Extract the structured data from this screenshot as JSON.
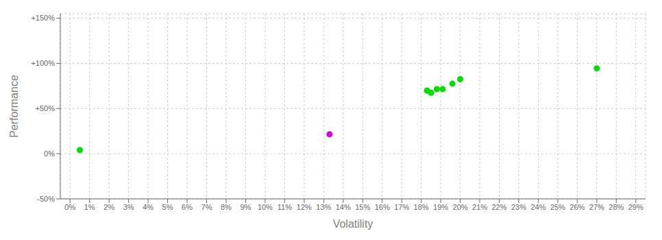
{
  "chart_data": {
    "type": "scatter",
    "xlabel": "Volatility",
    "ylabel": "Performance",
    "xlim": [
      -0.005,
      0.295
    ],
    "ylim": [
      -0.5,
      1.55
    ],
    "xticks": [
      {
        "value": 0.0,
        "label": "0%"
      },
      {
        "value": 0.01,
        "label": "1%"
      },
      {
        "value": 0.02,
        "label": "2%"
      },
      {
        "value": 0.03,
        "label": "3%"
      },
      {
        "value": 0.04,
        "label": "4%"
      },
      {
        "value": 0.05,
        "label": "5%"
      },
      {
        "value": 0.06,
        "label": "6%"
      },
      {
        "value": 0.07,
        "label": "7%"
      },
      {
        "value": 0.08,
        "label": "8%"
      },
      {
        "value": 0.09,
        "label": "9%"
      },
      {
        "value": 0.1,
        "label": "10%"
      },
      {
        "value": 0.11,
        "label": "11%"
      },
      {
        "value": 0.12,
        "label": "12%"
      },
      {
        "value": 0.13,
        "label": "13%"
      },
      {
        "value": 0.14,
        "label": "14%"
      },
      {
        "value": 0.15,
        "label": "15%"
      },
      {
        "value": 0.16,
        "label": "16%"
      },
      {
        "value": 0.17,
        "label": "17%"
      },
      {
        "value": 0.18,
        "label": "18%"
      },
      {
        "value": 0.19,
        "label": "19%"
      },
      {
        "value": 0.2,
        "label": "20%"
      },
      {
        "value": 0.21,
        "label": "21%"
      },
      {
        "value": 0.22,
        "label": "22%"
      },
      {
        "value": 0.23,
        "label": "23%"
      },
      {
        "value": 0.24,
        "label": "24%"
      },
      {
        "value": 0.25,
        "label": "25%"
      },
      {
        "value": 0.26,
        "label": "26%"
      },
      {
        "value": 0.27,
        "label": "27%"
      },
      {
        "value": 0.28,
        "label": "28%"
      },
      {
        "value": 0.29,
        "label": "29%"
      }
    ],
    "yticks": [
      {
        "value": -0.5,
        "label": "-50%"
      },
      {
        "value": 0.0,
        "label": "0%"
      },
      {
        "value": 0.5,
        "label": "+50%"
      },
      {
        "value": 1.0,
        "label": "+100%"
      },
      {
        "value": 1.5,
        "label": "+150%"
      }
    ],
    "grid": true,
    "series": [
      {
        "color": "#00dd00",
        "x": [
          0.005,
          0.183,
          0.185,
          0.188,
          0.191,
          0.196,
          0.2,
          0.27
        ],
        "values": [
          0.04,
          0.7,
          0.675,
          0.715,
          0.715,
          0.775,
          0.825,
          0.945
        ]
      },
      {
        "color": "#dd00dd",
        "x": [
          0.133
        ],
        "values": [
          0.215
        ]
      }
    ]
  }
}
